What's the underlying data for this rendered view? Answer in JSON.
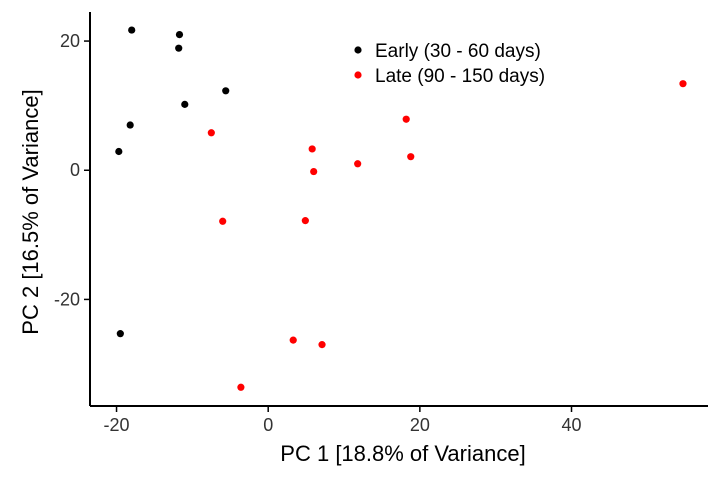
{
  "chart_data": {
    "type": "scatter",
    "xlabel": "PC 1 [18.8% of Variance]",
    "ylabel": "PC 2 [16.5% of Variance]",
    "xlim": [
      -23.5,
      58
    ],
    "ylim": [
      -36.5,
      24.5
    ],
    "xticks": [
      -20,
      0,
      20,
      40
    ],
    "yticks": [
      -20,
      0,
      20
    ],
    "x_tick_labels": [
      "-20",
      "0",
      "20",
      "40"
    ],
    "y_tick_labels": [
      "-20",
      "0",
      "20"
    ],
    "grid": false,
    "legend_position": "top-center",
    "series": [
      {
        "name": "Early (30 - 60 days)",
        "color": "#000000",
        "points": [
          {
            "x": -18.0,
            "y": 21.7
          },
          {
            "x": -11.7,
            "y": 21.0
          },
          {
            "x": -11.8,
            "y": 18.9
          },
          {
            "x": -5.6,
            "y": 12.3
          },
          {
            "x": -11.0,
            "y": 10.2
          },
          {
            "x": -18.2,
            "y": 7.0
          },
          {
            "x": -19.7,
            "y": 2.9
          },
          {
            "x": -19.5,
            "y": -25.3
          }
        ]
      },
      {
        "name": "Late (90 - 150 days)",
        "color": "#ff0000",
        "points": [
          {
            "x": 54.7,
            "y": 13.4
          },
          {
            "x": 18.2,
            "y": 7.9
          },
          {
            "x": -7.5,
            "y": 5.8
          },
          {
            "x": 5.8,
            "y": 3.3
          },
          {
            "x": 18.8,
            "y": 2.1
          },
          {
            "x": 11.8,
            "y": 1.0
          },
          {
            "x": 6.0,
            "y": -0.2
          },
          {
            "x": -6.0,
            "y": -7.9
          },
          {
            "x": 4.9,
            "y": -7.8
          },
          {
            "x": 3.3,
            "y": -26.3
          },
          {
            "x": 7.1,
            "y": -27.0
          },
          {
            "x": -3.6,
            "y": -33.6
          }
        ]
      }
    ]
  }
}
